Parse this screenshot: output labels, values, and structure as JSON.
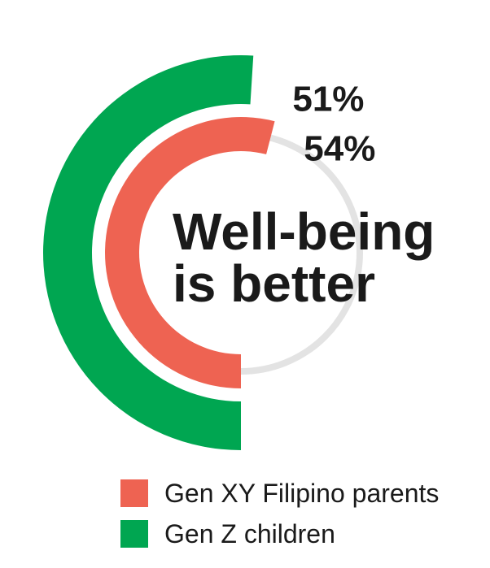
{
  "chart_data": {
    "type": "radial-bar",
    "title": "Well-being\nis better",
    "series": [
      {
        "name": "Gen Z children",
        "value": 51,
        "label": "51%",
        "color": "#00a651"
      },
      {
        "name": "Gen XY Filipino parents",
        "value": 54,
        "label": "54%",
        "color": "#ee6352"
      }
    ],
    "track_color": "#e3e3e3",
    "legend_position": "bottom"
  },
  "legend": [
    {
      "label": "Gen XY Filipino parents",
      "color": "#ee6352"
    },
    {
      "label": "Gen Z children",
      "color": "#00a651"
    }
  ],
  "title_lines": [
    "Well-being",
    "is better"
  ]
}
